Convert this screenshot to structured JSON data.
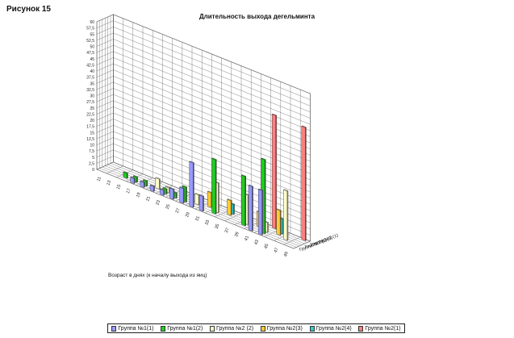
{
  "figure_label": "Рисунок 15",
  "chart_data": {
    "type": "bar3d",
    "title": "Длительность выхода дегельминта",
    "xlabel": "Возраст в днях (к началу выхода из яиц)",
    "ylabel": "",
    "ylim": [
      0,
      60
    ],
    "y_ticks": [
      "0",
      "2,5",
      "5",
      "7,5",
      "10",
      "12,5",
      "15",
      "17,5",
      "20",
      "22,5",
      "25",
      "27,5",
      "30",
      "32,5",
      "35",
      "37,5",
      "40",
      "42,5",
      "45",
      "47,5",
      "50",
      "52,5",
      "55",
      "57,5",
      "60"
    ],
    "categories": [
      "11",
      "13",
      "15",
      "17",
      "19",
      "21",
      "23",
      "25",
      "27",
      "29",
      "31",
      "33",
      "35",
      "37",
      "39",
      "41",
      "43",
      "45",
      "47",
      "49"
    ],
    "depth_labels": [
      "Группа №1 (1)",
      "Группа №2 (3)",
      "Группа №2 (1)"
    ],
    "grid": true,
    "legend_position": "bottom",
    "series": [
      {
        "name": "Группа №1(1)",
        "color": "#9999ff",
        "values": [
          0,
          0,
          0,
          2,
          2,
          2,
          2,
          4,
          6,
          18,
          6,
          0,
          0,
          0,
          0,
          18,
          18,
          0,
          0,
          0
        ]
      },
      {
        "name": "Группа №1(2)",
        "color": "#22cc22",
        "values": [
          0,
          0,
          2,
          2,
          2,
          0,
          2,
          2,
          6,
          0,
          0,
          22,
          0,
          0,
          20,
          0,
          30,
          0,
          0,
          0
        ]
      },
      {
        "name": "Группа №2 (2)",
        "color": "#ffffcc",
        "values": [
          0,
          0,
          0,
          0,
          0,
          4,
          2,
          0,
          0,
          4,
          0,
          12,
          0,
          0,
          12,
          0,
          4,
          0,
          20,
          0
        ]
      },
      {
        "name": "Группа №2(3)",
        "color": "#ffcc33",
        "values": [
          0,
          0,
          0,
          0,
          0,
          0,
          0,
          0,
          0,
          0,
          6,
          0,
          6,
          0,
          0,
          6,
          0,
          10,
          0,
          0
        ]
      },
      {
        "name": "Группа №2(4)",
        "color": "#33cccc",
        "values": [
          0,
          0,
          0,
          0,
          0,
          0,
          0,
          0,
          0,
          0,
          2,
          0,
          4,
          0,
          0,
          0,
          0,
          6,
          0,
          0
        ]
      },
      {
        "name": "Группа №2(1)",
        "color": "#ff8080",
        "values": [
          0,
          0,
          0,
          0,
          0,
          0,
          0,
          0,
          0,
          0,
          0,
          0,
          0,
          0,
          0,
          0,
          46,
          0,
          0,
          46
        ]
      }
    ]
  }
}
